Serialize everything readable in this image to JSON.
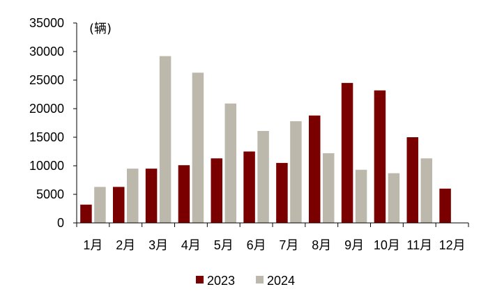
{
  "chart_data": {
    "type": "bar",
    "unit_label": "(辆)",
    "categories": [
      "1月",
      "2月",
      "3月",
      "4月",
      "5月",
      "6月",
      "7月",
      "8月",
      "9月",
      "10月",
      "11月",
      "12月"
    ],
    "series": [
      {
        "name": "2023",
        "color": "#7a0000",
        "values": [
          3200,
          6300,
          9500,
          10100,
          11300,
          12500,
          10500,
          18800,
          24500,
          23200,
          15000,
          6000
        ]
      },
      {
        "name": "2024",
        "color": "#bcb9ac",
        "values": [
          6300,
          9500,
          29200,
          26300,
          20900,
          16100,
          17800,
          12200,
          9300,
          8700,
          11300,
          null
        ]
      }
    ],
    "y_ticks": [
      "0",
      "5000",
      "10000",
      "15000",
      "20000",
      "25000",
      "30000",
      "35000"
    ],
    "ylim": [
      0,
      35000
    ],
    "grid": false,
    "legend_position": "bottom"
  }
}
